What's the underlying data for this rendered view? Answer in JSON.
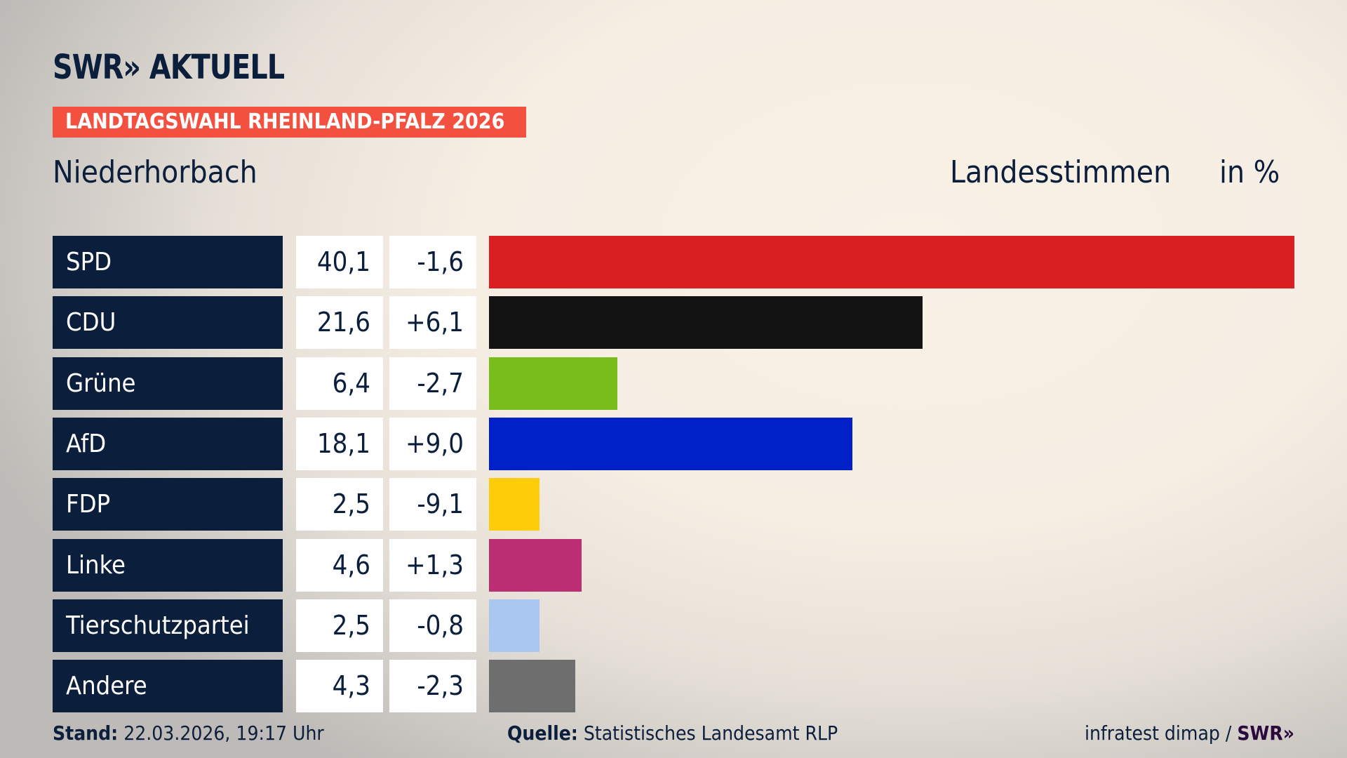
{
  "logo": "SWR» AKTUELL",
  "banner": "LANDTAGSWAHL RHEINLAND-PFALZ 2026",
  "place": "Niederhorbach",
  "header_label": "Landesstimmen",
  "header_unit": "in %",
  "colors": {
    "navy": "#0b1e3c",
    "banner": "#f4503f"
  },
  "chart_data": {
    "type": "bar",
    "categories": [
      "SPD",
      "CDU",
      "Grüne",
      "AfD",
      "FDP",
      "Linke",
      "Tierschutzpartei",
      "Andere"
    ],
    "values": [
      40.1,
      21.6,
      6.4,
      18.1,
      2.5,
      4.6,
      2.5,
      4.3
    ],
    "value_labels": [
      "40,1",
      "21,6",
      "6,4",
      "18,1",
      "2,5",
      "4,6",
      "2,5",
      "4,3"
    ],
    "diff_labels": [
      "-1,6",
      "+6,1",
      "-2,7",
      "+9,0",
      "-9,1",
      "+1,3",
      "-0,8",
      "-2,3"
    ],
    "colors": [
      "#d91f22",
      "#131313",
      "#78bd1c",
      "#0020c8",
      "#ffcc0a",
      "#bd2f74",
      "#aac8ef",
      "#6e6e6e"
    ],
    "xlabel": "",
    "ylabel": "Landesstimmen in %"
  },
  "footer": {
    "stand_label": "Stand:",
    "stand_value": "22.03.2026, 19:17 Uhr",
    "quelle_label": "Quelle:",
    "quelle_value": "Statistisches Landesamt RLP",
    "credit": "infratest dimap / ",
    "credit_logo": "SWR»"
  }
}
